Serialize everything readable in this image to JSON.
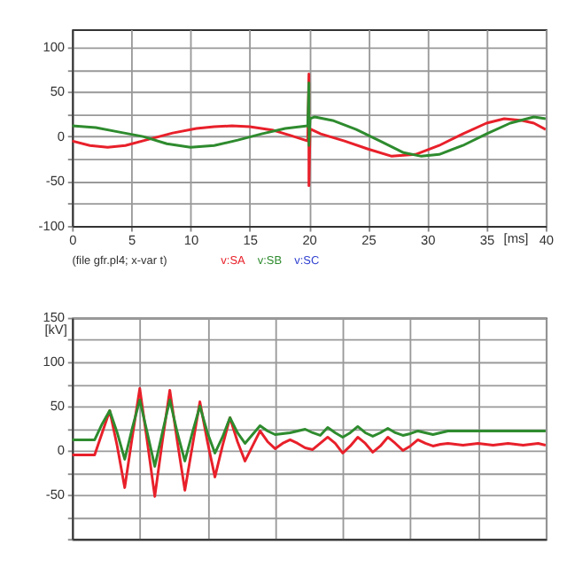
{
  "chart_data": [
    {
      "type": "line",
      "xlim": [
        0,
        40
      ],
      "xticks": [
        0,
        5,
        10,
        15,
        20,
        25,
        30,
        35,
        40
      ],
      "xlabel": "[ms]",
      "ylim": [
        -100,
        120
      ],
      "yticks": [
        -100,
        {
          "value": -75,
          "label": null
        },
        -50,
        {
          "value": -25,
          "label": null
        },
        0,
        {
          "value": 25,
          "label": null
        },
        50,
        {
          "value": 75,
          "label": null
        },
        100
      ],
      "grid": true,
      "legend": "bottom left",
      "annotations": [
        "(file gfr.pl4; x-var t)"
      ],
      "series": [
        {
          "name": "v:SA",
          "color": "#e8202a",
          "x": [
            0,
            1.5,
            3,
            4.5,
            6.5,
            8.5,
            10.5,
            12,
            13.5,
            15,
            17,
            18.5,
            19.9,
            20,
            20,
            20.1,
            20.2,
            21,
            23,
            25,
            27,
            29,
            31,
            33,
            35,
            36.5,
            38,
            39,
            40
          ],
          "values": [
            -5,
            -10,
            -12,
            -10,
            -3,
            4,
            9,
            11,
            12,
            11,
            7,
            1,
            -5,
            70,
            -55,
            8,
            8,
            3,
            -5,
            -14,
            -22,
            -20,
            -10,
            3,
            15,
            20,
            18,
            15,
            8
          ]
        },
        {
          "name": "v:SB",
          "color": "#2e8b2e",
          "x": [
            0,
            2,
            4,
            6,
            8,
            10,
            12,
            14,
            16,
            18,
            19.9,
            20,
            20,
            20.1,
            20.5,
            22,
            24,
            26,
            28,
            29.5,
            31,
            33,
            35,
            37,
            39,
            40
          ],
          "values": [
            12,
            10,
            5,
            0,
            -8,
            -12,
            -10,
            -4,
            3,
            9,
            12,
            60,
            -10,
            20,
            22,
            18,
            8,
            -5,
            -18,
            -22,
            -20,
            -10,
            3,
            15,
            22,
            20
          ]
        },
        {
          "name": "v:SC",
          "color": "#3040d0"
        }
      ]
    },
    {
      "type": "line",
      "categories": [
        null,
        null,
        null,
        null,
        null,
        null,
        null,
        null,
        null,
        null,
        null,
        null,
        null,
        null,
        null,
        null,
        null,
        null,
        null,
        null,
        null,
        null,
        null,
        null,
        null,
        null,
        null,
        null,
        null,
        null,
        null,
        null,
        null,
        null,
        null,
        null,
        null,
        null,
        null,
        null,
        null,
        null,
        null,
        null,
        null,
        null,
        null,
        null,
        null,
        null,
        null,
        null,
        null,
        null,
        null,
        null,
        null,
        null,
        null,
        null,
        null,
        null,
        null,
        null
      ],
      "ylabel": "[kV]",
      "ylim": [
        -100,
        150
      ],
      "yticks": [
        {
          "value": -100,
          "label": null
        },
        {
          "value": -75,
          "label": null
        },
        -50,
        {
          "value": -25,
          "label": null
        },
        0,
        {
          "value": 25,
          "label": null
        },
        50,
        {
          "value": 75,
          "label": null
        },
        100,
        {
          "value": 125,
          "label": null
        },
        150
      ],
      "grid": true,
      "tick_labels": "y",
      "series": [
        {
          "color": "#e8202a",
          "values": [
            -5,
            -5,
            -5,
            -5,
            20,
            45,
            5,
            -42,
            15,
            70,
            10,
            -52,
            10,
            68,
            10,
            -45,
            5,
            55,
            10,
            -30,
            5,
            37,
            10,
            -12,
            5,
            22,
            10,
            2,
            8,
            12,
            8,
            3,
            1,
            8,
            15,
            8,
            -3,
            5,
            15,
            8,
            -2,
            5,
            15,
            8,
            0,
            5,
            12,
            8,
            5,
            7,
            8,
            7,
            6,
            7,
            8,
            7,
            6,
            7,
            8,
            7,
            6,
            7,
            8,
            6
          ]
        },
        {
          "color": "#2e8b2e",
          "values": [
            12,
            12,
            12,
            12,
            30,
            45,
            20,
            -10,
            25,
            57,
            20,
            -18,
            20,
            57,
            20,
            -12,
            20,
            50,
            20,
            -3,
            15,
            37,
            20,
            8,
            18,
            28,
            22,
            18,
            19,
            20,
            22,
            24,
            20,
            17,
            26,
            20,
            15,
            20,
            27,
            20,
            16,
            20,
            25,
            20,
            17,
            19,
            22,
            20,
            18,
            20,
            22,
            22,
            22,
            22,
            22,
            22,
            22,
            22,
            22,
            22,
            22,
            22,
            22,
            22
          ]
        }
      ]
    }
  ]
}
